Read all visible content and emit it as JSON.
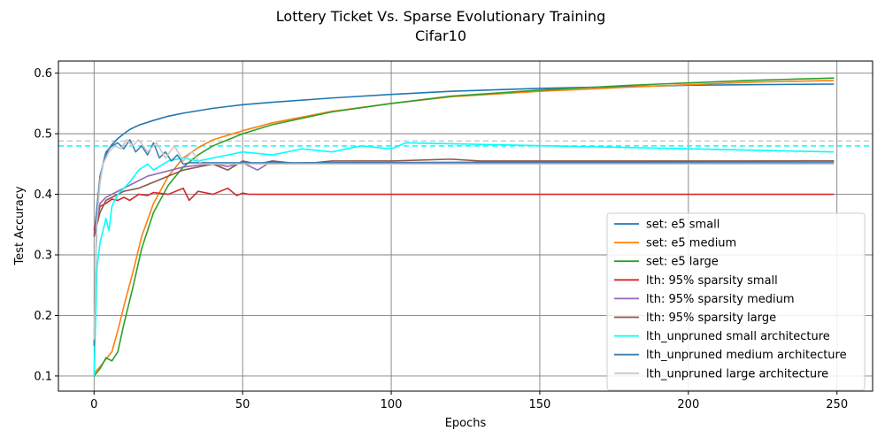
{
  "chart_data": {
    "type": "line",
    "title": "Lottery Ticket Vs. Sparse Evolutionary Training",
    "subtitle": "Cifar10",
    "xlabel": "Epochs",
    "ylabel": "Test Accuracy",
    "xlim": [
      -12,
      262
    ],
    "ylim": [
      0.075,
      0.62
    ],
    "xticks": [
      0,
      50,
      100,
      150,
      200,
      250
    ],
    "yticks": [
      0.1,
      0.2,
      0.3,
      0.4,
      0.5,
      0.6
    ],
    "xtick_labels": [
      "0",
      "50",
      "100",
      "150",
      "200",
      "250"
    ],
    "ytick_labels": [
      "0.1",
      "0.2",
      "0.3",
      "0.4",
      "0.5",
      "0.6"
    ],
    "grid": true,
    "legend_position": "lower-right",
    "series": [
      {
        "name": "set: e5 small",
        "color": "#1f77b4",
        "x": [
          0,
          1,
          2,
          3,
          4,
          5,
          6,
          8,
          10,
          12,
          15,
          20,
          25,
          30,
          40,
          50,
          60,
          80,
          100,
          120,
          150,
          180,
          200,
          220,
          249
        ],
        "y": [
          0.33,
          0.38,
          0.42,
          0.45,
          0.465,
          0.475,
          0.482,
          0.492,
          0.5,
          0.507,
          0.514,
          0.522,
          0.529,
          0.534,
          0.542,
          0.548,
          0.552,
          0.559,
          0.565,
          0.57,
          0.575,
          0.578,
          0.58,
          0.581,
          0.582
        ]
      },
      {
        "name": "set: e5 medium",
        "color": "#ff7f0e",
        "x": [
          0,
          2,
          4,
          6,
          8,
          10,
          13,
          16,
          20,
          25,
          30,
          35,
          40,
          50,
          60,
          80,
          100,
          120,
          150,
          180,
          200,
          220,
          249
        ],
        "y": [
          0.105,
          0.115,
          0.128,
          0.14,
          0.175,
          0.215,
          0.27,
          0.33,
          0.385,
          0.43,
          0.46,
          0.477,
          0.49,
          0.505,
          0.518,
          0.537,
          0.55,
          0.561,
          0.57,
          0.577,
          0.581,
          0.585,
          0.588
        ]
      },
      {
        "name": "set: e5 large",
        "color": "#2ca02c",
        "x": [
          0,
          2,
          4,
          6,
          8,
          10,
          13,
          16,
          20,
          25,
          30,
          35,
          40,
          50,
          60,
          80,
          100,
          120,
          150,
          180,
          200,
          220,
          249
        ],
        "y": [
          0.1,
          0.112,
          0.13,
          0.125,
          0.14,
          0.185,
          0.245,
          0.31,
          0.37,
          0.415,
          0.445,
          0.465,
          0.48,
          0.5,
          0.515,
          0.536,
          0.55,
          0.562,
          0.572,
          0.58,
          0.584,
          0.588,
          0.592
        ]
      },
      {
        "name": "lth: 95% sparsity small",
        "color": "#d62728",
        "x": [
          0,
          1,
          2,
          4,
          6,
          8,
          10,
          12,
          15,
          18,
          20,
          25,
          30,
          32,
          35,
          40,
          45,
          48,
          50,
          52,
          249
        ],
        "y": [
          0.34,
          0.36,
          0.38,
          0.385,
          0.392,
          0.39,
          0.395,
          0.39,
          0.4,
          0.398,
          0.403,
          0.4,
          0.41,
          0.39,
          0.405,
          0.4,
          0.41,
          0.398,
          0.402,
          0.4,
          0.4
        ]
      },
      {
        "name": "lth: 95% sparsity medium",
        "color": "#9467bd",
        "x": [
          0,
          1,
          2,
          4,
          6,
          8,
          10,
          14,
          18,
          22,
          26,
          30,
          35,
          40,
          45,
          50,
          55,
          60,
          65,
          70,
          249
        ],
        "y": [
          0.33,
          0.36,
          0.385,
          0.395,
          0.4,
          0.405,
          0.41,
          0.42,
          0.43,
          0.435,
          0.44,
          0.445,
          0.448,
          0.45,
          0.446,
          0.452,
          0.44,
          0.455,
          0.45,
          0.452,
          0.455
        ]
      },
      {
        "name": "lth: 95% sparsity large",
        "color": "#8c564b",
        "x": [
          0,
          2,
          4,
          6,
          10,
          15,
          20,
          25,
          30,
          35,
          40,
          45,
          50,
          55,
          60,
          70,
          80,
          100,
          120,
          130,
          249
        ],
        "y": [
          0.33,
          0.37,
          0.39,
          0.395,
          0.405,
          0.41,
          0.42,
          0.43,
          0.44,
          0.445,
          0.45,
          0.44,
          0.455,
          0.45,
          0.455,
          0.45,
          0.455,
          0.455,
          0.458,
          0.455,
          0.455
        ]
      },
      {
        "name": "lth_unpruned small architecture",
        "color": "#00ffff",
        "x": [
          0,
          1,
          2,
          4,
          5,
          6,
          8,
          10,
          12,
          15,
          18,
          20,
          25,
          30,
          35,
          40,
          50,
          60,
          70,
          80,
          90,
          100,
          105,
          249
        ],
        "y": [
          0.1,
          0.28,
          0.32,
          0.36,
          0.34,
          0.38,
          0.4,
          0.41,
          0.42,
          0.44,
          0.45,
          0.44,
          0.455,
          0.46,
          0.455,
          0.46,
          0.47,
          0.465,
          0.475,
          0.47,
          0.48,
          0.475,
          0.485,
          0.47
        ]
      },
      {
        "name": "lth_unpruned medium architecture",
        "color": "#3f7fb0",
        "x": [
          0,
          1,
          2,
          3,
          4,
          6,
          8,
          10,
          12,
          14,
          16,
          18,
          20,
          22,
          24,
          26,
          28,
          30,
          32,
          249
        ],
        "y": [
          0.15,
          0.38,
          0.43,
          0.45,
          0.47,
          0.48,
          0.485,
          0.475,
          0.49,
          0.47,
          0.48,
          0.465,
          0.485,
          0.46,
          0.47,
          0.455,
          0.465,
          0.45,
          0.452,
          0.452
        ]
      },
      {
        "name": "lth_unpruned large architecture",
        "color": "#c8c8c8",
        "x": [
          0,
          1,
          2,
          3,
          5,
          7,
          9,
          11,
          13,
          15,
          18,
          21,
          24,
          27,
          30,
          33,
          36,
          249
        ],
        "y": [
          0.16,
          0.36,
          0.42,
          0.45,
          0.47,
          0.48,
          0.475,
          0.49,
          0.48,
          0.49,
          0.47,
          0.485,
          0.46,
          0.48,
          0.455,
          0.47,
          0.45,
          0.45
        ]
      }
    ],
    "reference_lines": [
      {
        "y": 0.488,
        "color": "#c8c8c8"
      },
      {
        "y": 0.48,
        "color": "#00ffff"
      }
    ]
  }
}
